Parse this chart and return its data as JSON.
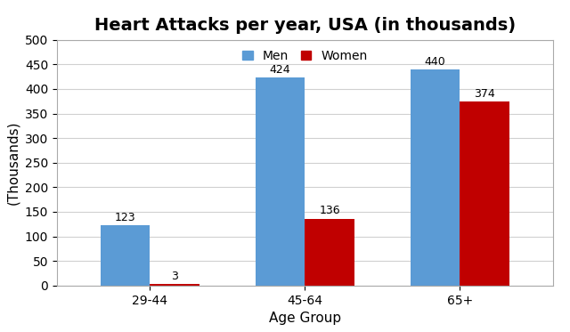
{
  "title": "Heart Attacks per year, USA (in thousands)",
  "xlabel": "Age Group",
  "ylabel": "(Thousands)",
  "categories": [
    "29-44",
    "45-64",
    "65+"
  ],
  "men_values": [
    123,
    424,
    440
  ],
  "women_values": [
    3,
    136,
    374
  ],
  "men_color": "#5B9BD5",
  "women_color": "#C00000",
  "ylim": [
    0,
    500
  ],
  "yticks": [
    0,
    50,
    100,
    150,
    200,
    250,
    300,
    350,
    400,
    450,
    500
  ],
  "legend_labels": [
    "Men",
    "Women"
  ],
  "bar_width": 0.32,
  "title_fontsize": 14,
  "axis_label_fontsize": 11,
  "tick_fontsize": 10,
  "value_fontsize": 9,
  "background_color": "#ffffff",
  "plot_bg_color": "#ffffff",
  "grid_color": "#d0d0d0"
}
